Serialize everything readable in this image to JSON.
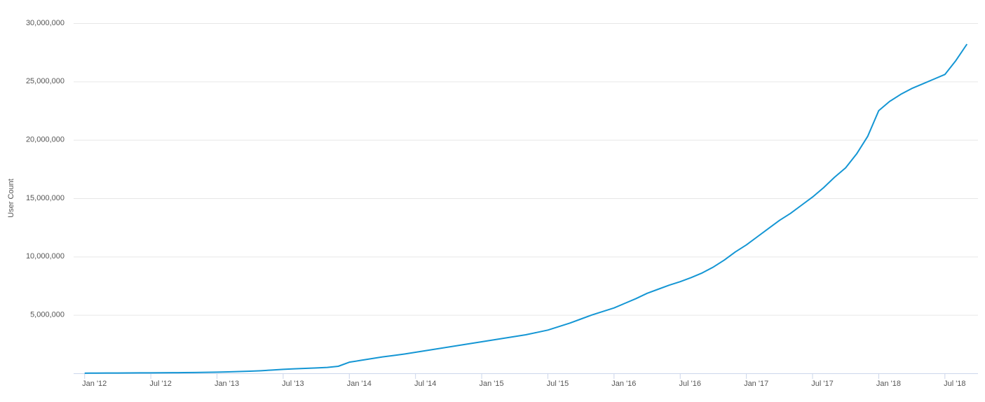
{
  "chart_data": {
    "type": "line",
    "y_label": "User Count",
    "color": "#1496d4",
    "grid": true,
    "x": [
      "2012-01",
      "2012-02",
      "2012-03",
      "2012-04",
      "2012-05",
      "2012-06",
      "2012-07",
      "2012-08",
      "2012-09",
      "2012-10",
      "2012-11",
      "2012-12",
      "2013-01",
      "2013-02",
      "2013-03",
      "2013-04",
      "2013-05",
      "2013-06",
      "2013-07",
      "2013-08",
      "2013-09",
      "2013-10",
      "2013-11",
      "2013-12",
      "2014-01",
      "2014-02",
      "2014-03",
      "2014-04",
      "2014-05",
      "2014-06",
      "2014-07",
      "2014-08",
      "2014-09",
      "2014-10",
      "2014-11",
      "2014-12",
      "2015-01",
      "2015-02",
      "2015-03",
      "2015-04",
      "2015-05",
      "2015-06",
      "2015-07",
      "2015-08",
      "2015-09",
      "2015-10",
      "2015-11",
      "2015-12",
      "2016-01",
      "2016-02",
      "2016-03",
      "2016-04",
      "2016-05",
      "2016-06",
      "2016-07",
      "2016-08",
      "2016-09",
      "2016-10",
      "2016-11",
      "2016-12",
      "2017-01",
      "2017-02",
      "2017-03",
      "2017-04",
      "2017-05",
      "2017-06",
      "2017-07",
      "2017-08",
      "2017-09",
      "2017-10",
      "2017-11",
      "2017-12",
      "2018-01",
      "2018-02",
      "2018-03",
      "2018-04",
      "2018-05",
      "2018-06",
      "2018-07",
      "2018-08",
      "2018-09"
    ],
    "values": [
      10000,
      15000,
      20000,
      25000,
      30000,
      35000,
      40000,
      45000,
      50000,
      60000,
      70000,
      80000,
      100000,
      120000,
      150000,
      180000,
      220000,
      280000,
      340000,
      380000,
      420000,
      460000,
      500000,
      600000,
      950000,
      1100000,
      1250000,
      1400000,
      1520000,
      1650000,
      1800000,
      1950000,
      2100000,
      2250000,
      2400000,
      2550000,
      2700000,
      2850000,
      3000000,
      3150000,
      3300000,
      3500000,
      3700000,
      4000000,
      4300000,
      4650000,
      5000000,
      5300000,
      5600000,
      6000000,
      6400000,
      6850000,
      7200000,
      7550000,
      7850000,
      8200000,
      8600000,
      9100000,
      9700000,
      10400000,
      11000000,
      11700000,
      12400000,
      13100000,
      13700000,
      14400000,
      15100000,
      15900000,
      16800000,
      17600000,
      18800000,
      20300000,
      22500000,
      23300000,
      23900000,
      24400000,
      24800000,
      25200000,
      25600000,
      26800000,
      28200000
    ],
    "xlim": [
      "2011-12",
      "2018-10"
    ],
    "xticks": [
      {
        "value": "2012-01",
        "label": "Jan '12"
      },
      {
        "value": "2012-07",
        "label": "Jul '12"
      },
      {
        "value": "2013-01",
        "label": "Jan '13"
      },
      {
        "value": "2013-07",
        "label": "Jul '13"
      },
      {
        "value": "2014-01",
        "label": "Jan '14"
      },
      {
        "value": "2014-07",
        "label": "Jul '14"
      },
      {
        "value": "2015-01",
        "label": "Jan '15"
      },
      {
        "value": "2015-07",
        "label": "Jul '15"
      },
      {
        "value": "2016-01",
        "label": "Jan '16"
      },
      {
        "value": "2016-07",
        "label": "Jul '16"
      },
      {
        "value": "2017-01",
        "label": "Jan '17"
      },
      {
        "value": "2017-07",
        "label": "Jul '17"
      },
      {
        "value": "2018-01",
        "label": "Jan '18"
      },
      {
        "value": "2018-07",
        "label": "Jul '18"
      }
    ],
    "ylim": [
      0,
      30000000
    ],
    "yticks": [
      {
        "value": 5000000,
        "label": "5,000,000"
      },
      {
        "value": 10000000,
        "label": "10,000,000"
      },
      {
        "value": 15000000,
        "label": "15,000,000"
      },
      {
        "value": 20000000,
        "label": "20,000,000"
      },
      {
        "value": 25000000,
        "label": "25,000,000"
      },
      {
        "value": 30000000,
        "label": "30,000,000"
      }
    ]
  }
}
